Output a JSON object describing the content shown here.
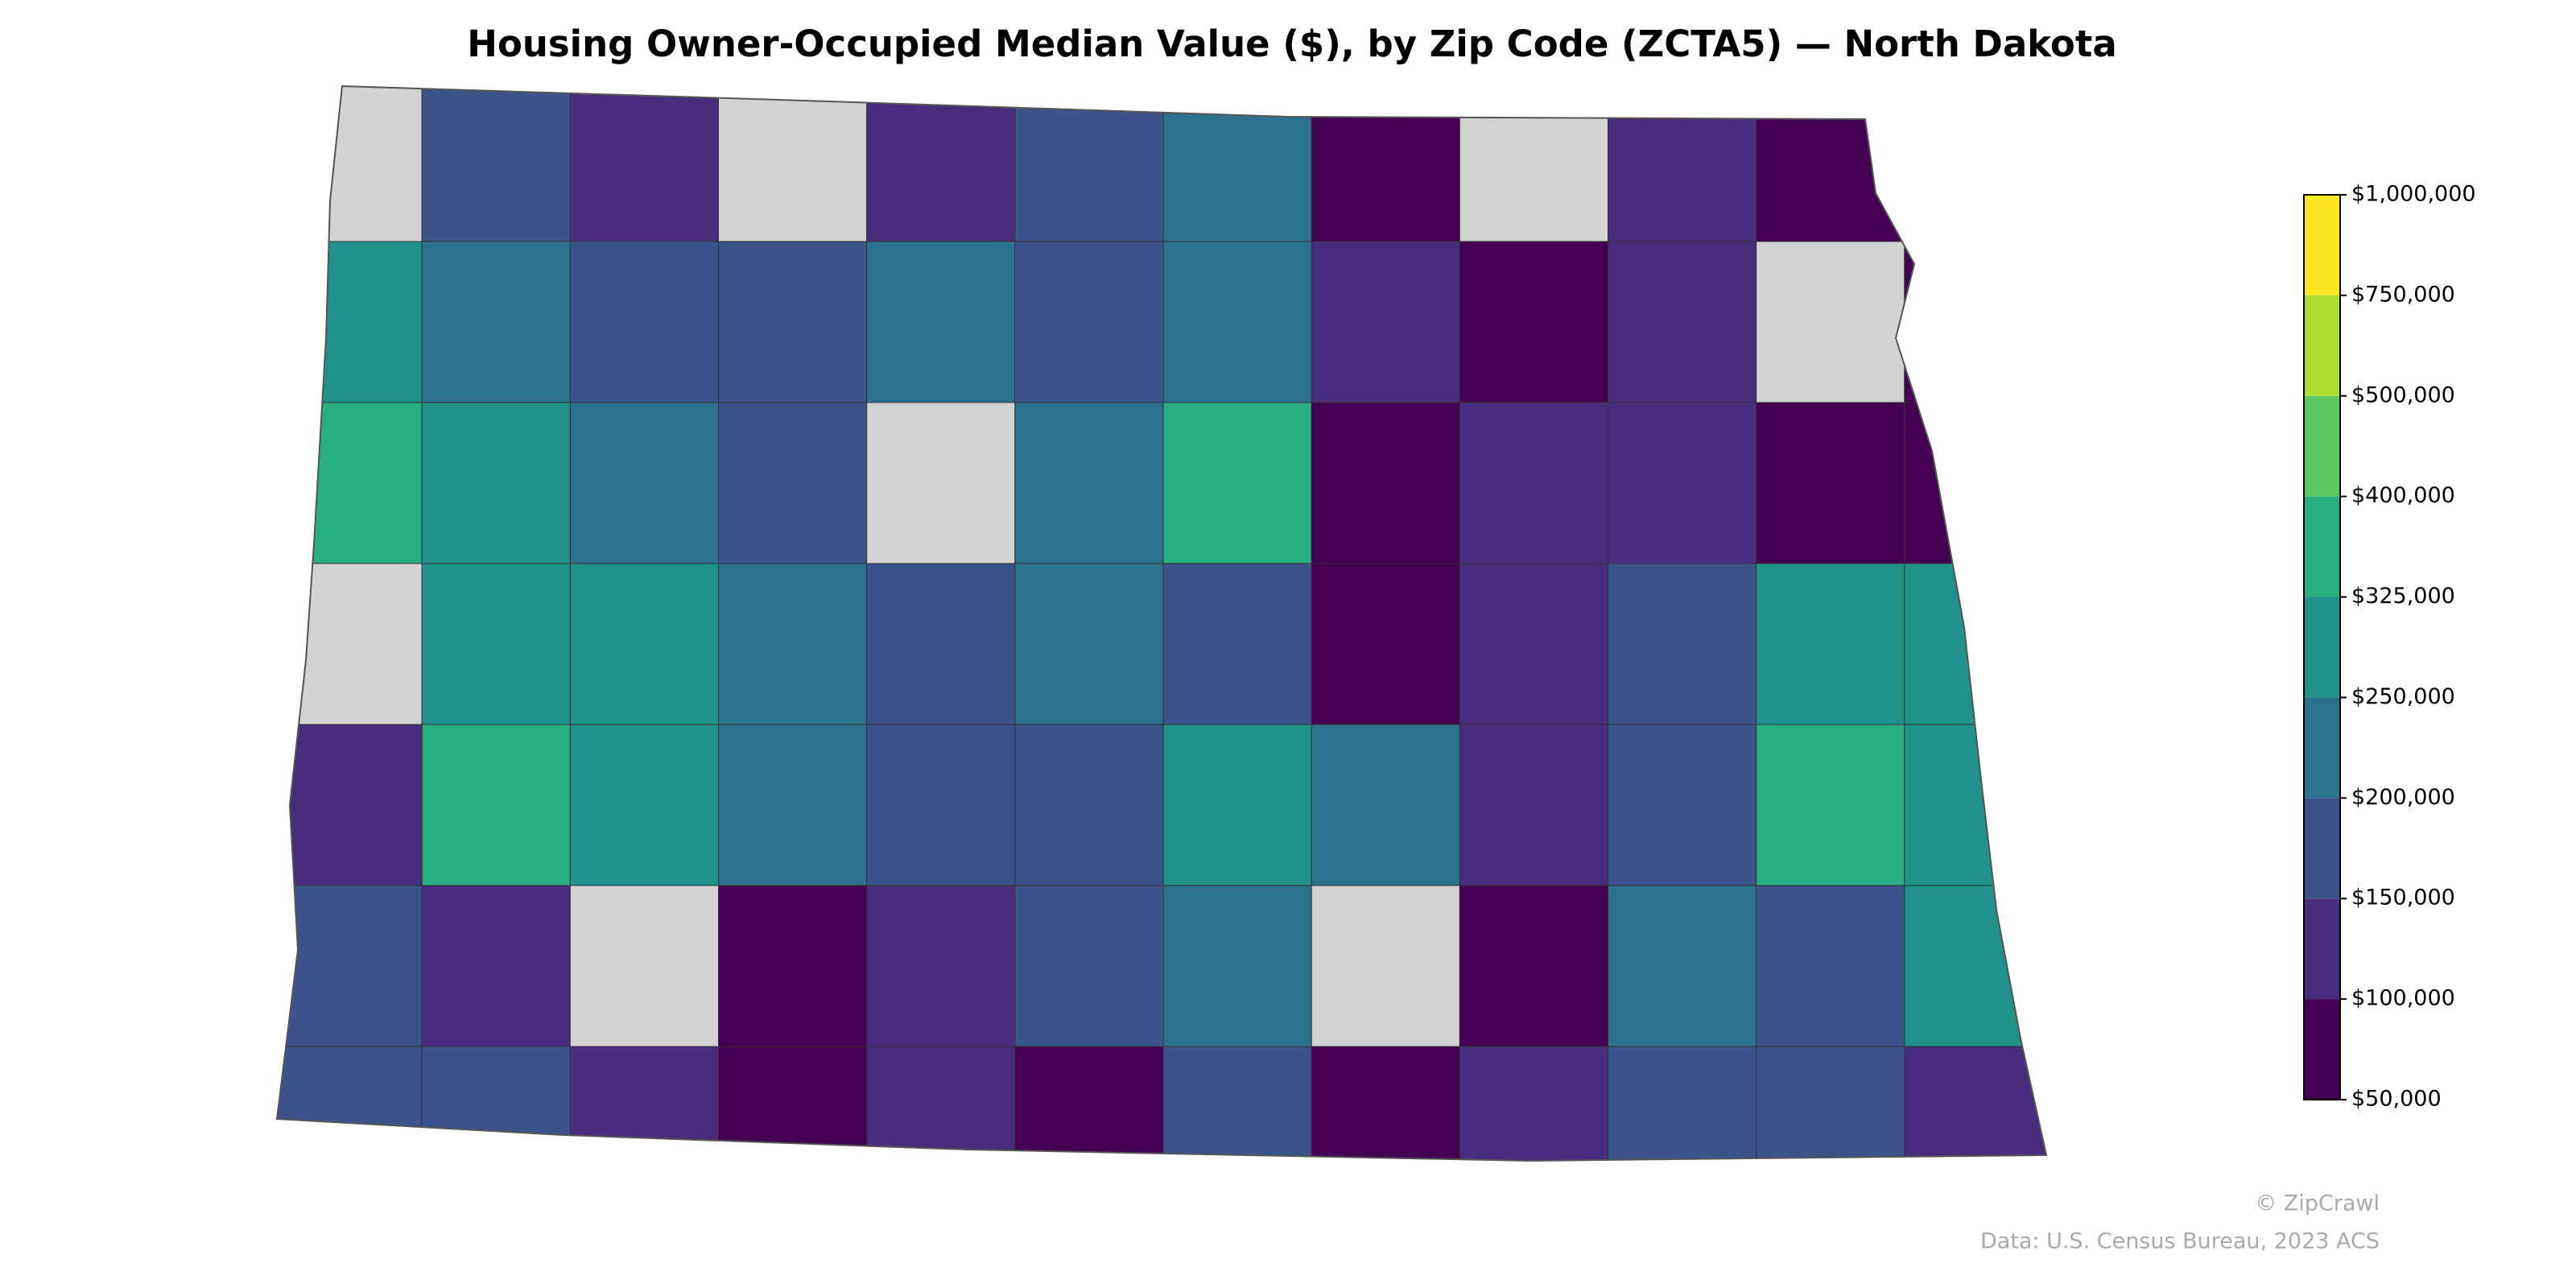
{
  "chart_data": {
    "type": "choropleth",
    "title": "Housing Owner-Occupied Median Value ($), by Zip Code (ZCTA5) — North Dakota",
    "colorbar": {
      "ticks": [
        {
          "value": 50000,
          "label": "$50,000"
        },
        {
          "value": 100000,
          "label": "$100,000"
        },
        {
          "value": 150000,
          "label": "$150,000"
        },
        {
          "value": 200000,
          "label": "$200,000"
        },
        {
          "value": 250000,
          "label": "$250,000"
        },
        {
          "value": 325000,
          "label": "$325,000"
        },
        {
          "value": 400000,
          "label": "$400,000"
        },
        {
          "value": 500000,
          "label": "$500,000"
        },
        {
          "value": 750000,
          "label": "$750,000"
        },
        {
          "value": 1000000,
          "label": "$1,000,000"
        }
      ],
      "colors": [
        "#440154",
        "#472d7b",
        "#3b528b",
        "#2c728e",
        "#21918c",
        "#28ae80",
        "#5ec962",
        "#addc30",
        "#fde725"
      ]
    },
    "missing_color": "#d3d3d3",
    "credit": "© ZipCrawl",
    "source": "Data: U.S. Census Bureau, 2023 ACS"
  }
}
